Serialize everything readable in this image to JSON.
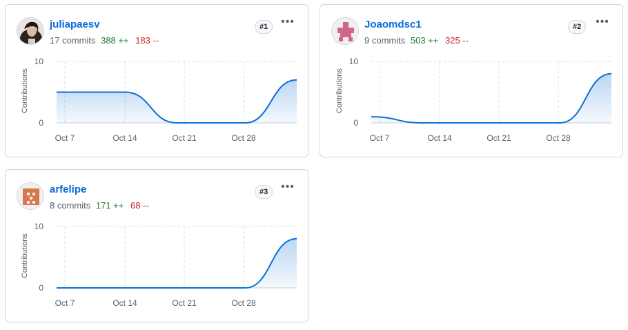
{
  "colors": {
    "line": "#0a6fd6",
    "grid": "#d8dee4",
    "add": "#1a7f37",
    "del": "#cf222e",
    "link": "#0969da"
  },
  "chart_common": {
    "y_label": "Contributions",
    "y_ticks": [
      "10",
      "0"
    ],
    "x_ticks": [
      "Oct 7",
      "Oct 14",
      "Oct 21",
      "Oct 28"
    ]
  },
  "contributors": [
    {
      "login": "juliapaesv",
      "commits": "17 commits",
      "additions": "388 ++",
      "deletions": "183 --",
      "rank": "#1",
      "avatar": "photo-avatar",
      "chart_data": {
        "type": "area",
        "ylabel": "Contributions",
        "ylim": [
          0,
          10
        ],
        "x": [
          "Oct 6",
          "Oct 14",
          "Oct 20",
          "Oct 28",
          "Nov 3"
        ],
        "values": [
          5,
          5,
          0,
          0,
          7
        ]
      }
    },
    {
      "login": "Joaomdsc1",
      "commits": "9 commits",
      "additions": "503 ++",
      "deletions": "325 --",
      "rank": "#2",
      "avatar": "identicon-pink",
      "chart_data": {
        "type": "area",
        "ylabel": "Contributions",
        "ylim": [
          0,
          10
        ],
        "x": [
          "Oct 6",
          "Oct 12",
          "Oct 20",
          "Oct 28",
          "Nov 3"
        ],
        "values": [
          1,
          0,
          0,
          0,
          8
        ]
      }
    },
    {
      "login": "arfelipe",
      "commits": "8 commits",
      "additions": "171 ++",
      "deletions": "68 --",
      "rank": "#3",
      "avatar": "identicon-orange",
      "chart_data": {
        "type": "area",
        "ylabel": "Contributions",
        "ylim": [
          0,
          10
        ],
        "x": [
          "Oct 6",
          "Oct 14",
          "Oct 20",
          "Oct 28",
          "Nov 3"
        ],
        "values": [
          0,
          0,
          0,
          0,
          8
        ]
      }
    }
  ]
}
